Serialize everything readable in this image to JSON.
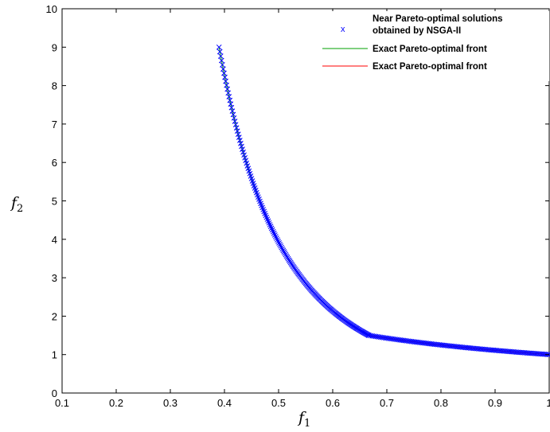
{
  "chart_data": {
    "type": "scatter",
    "title": "",
    "xlabel": {
      "main": "f",
      "sub": "1"
    },
    "ylabel": {
      "main": "f",
      "sub": "2"
    },
    "xlim": [
      0.1,
      1.0
    ],
    "ylim": [
      0,
      10
    ],
    "xticks": [
      "0.1",
      "0.2",
      "0.3",
      "0.4",
      "0.5",
      "0.6",
      "0.7",
      "0.8",
      "0.9",
      "1"
    ],
    "yticks": [
      "0",
      "1",
      "2",
      "3",
      "4",
      "5",
      "6",
      "7",
      "8",
      "9",
      "10"
    ],
    "grid": false,
    "legend_position": "top-right",
    "series": [
      {
        "name": "Near Pareto-optimal solutions obtained by NSGA-II",
        "legend_lines": [
          "Near Pareto-optimal solutions",
          "obtained by NSGA-II"
        ],
        "kind": "scatter",
        "marker": "x",
        "color": "#0000ff",
        "segments": [
          {
            "x_from": 0.39,
            "x_to": 0.667,
            "formula": "(1 + 9*(x2^2)) / x1 with 0.2 <= (x2^2) <= 1, approximated as f2 = (1 + 9*t)/f1 with f1 between 0.39 and 0.667"
          },
          {
            "x_from": 0.667,
            "x_to": 1.0,
            "formula": "f2 = 1/f1"
          }
        ],
        "points_per_segment": [
          180,
          110
        ]
      },
      {
        "name": "Exact Pareto-optimal front",
        "kind": "line",
        "color": "#00a000",
        "x_range": [
          0.39,
          0.667
        ]
      },
      {
        "name": "Exact Pareto-optimal front",
        "kind": "line",
        "color": "#ff0000",
        "x_range": [
          0.667,
          1.0
        ]
      }
    ]
  }
}
